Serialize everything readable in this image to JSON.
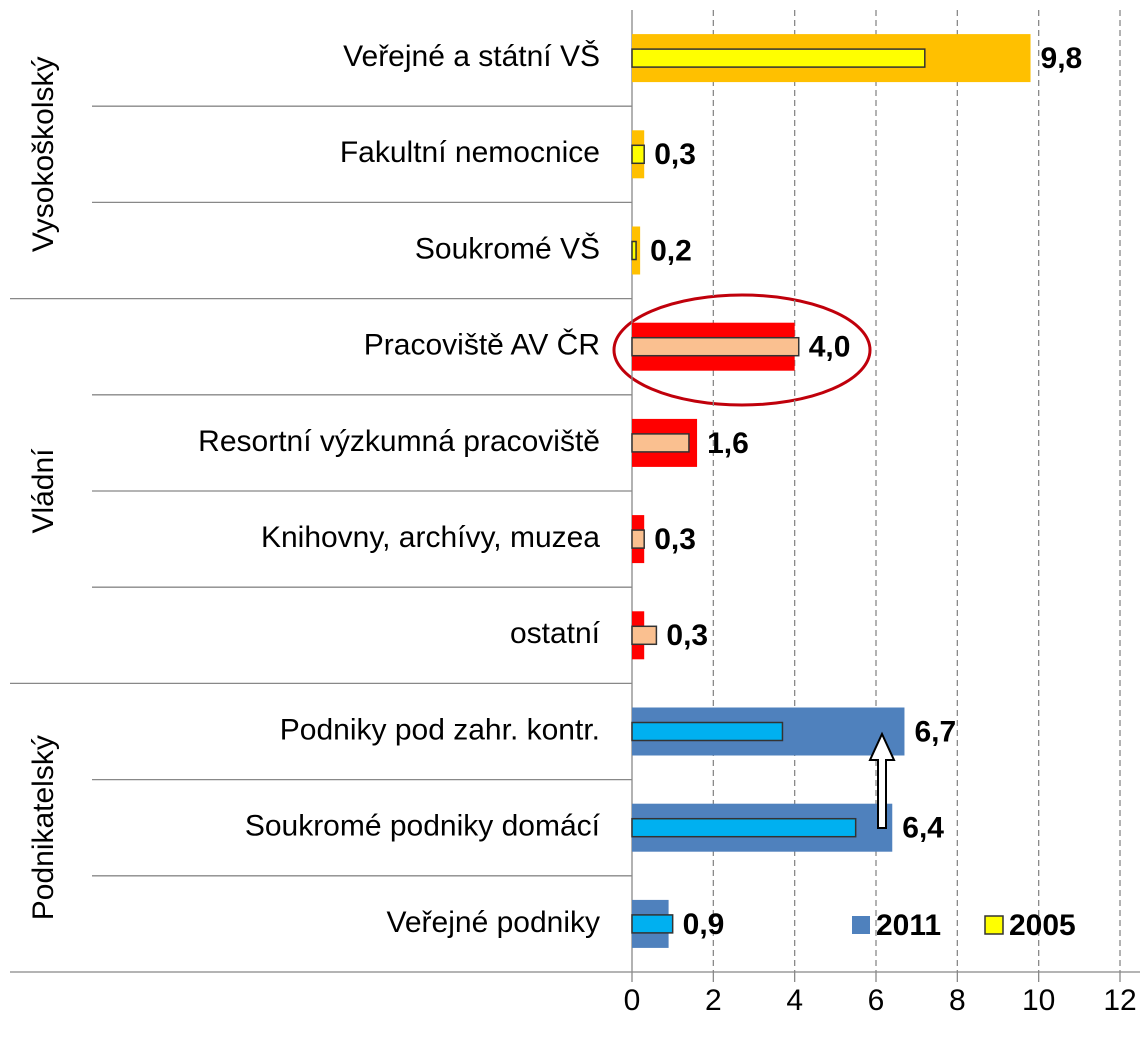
{
  "chart_data": {
    "type": "bar",
    "orientation": "horizontal",
    "groups": [
      {
        "label": "Vysokoškolský",
        "categories": [
          "Veřejné a státní VŠ",
          "Fakultní nemocnice",
          "Soukromé VŠ"
        ]
      },
      {
        "label": "Vládní",
        "categories": [
          "Pracoviště AV ČR",
          "Resortní výzkumná pracoviště",
          "Knihovny, archívy, muzea",
          "ostatní"
        ]
      },
      {
        "label": "Podnikatelský",
        "categories": [
          "Podniky pod zahr. kontr.",
          "Soukromé podniky domácí",
          "Veřejné podniky"
        ]
      }
    ],
    "series": [
      {
        "name": "2011",
        "color": "#4f81bd",
        "colors": [
          "#ffc000",
          "#ffc000",
          "#ffc000",
          "#ff0000",
          "#ff0000",
          "#ff0000",
          "#ff0000",
          "#4f81bd",
          "#4f81bd",
          "#4f81bd"
        ],
        "values": [
          9.8,
          0.3,
          0.2,
          4.0,
          1.6,
          0.3,
          0.3,
          6.7,
          6.4,
          0.9
        ],
        "value_labels": [
          "9,8",
          "0,3",
          "0,2",
          "4,0",
          "1,6",
          "0,3",
          "0,3",
          "6,7",
          "6,4",
          "0,9"
        ]
      },
      {
        "name": "2005",
        "color": "#ffff00",
        "colors": [
          "#ffff00",
          "#ffff00",
          "#ffff00",
          "#fac090",
          "#fac090",
          "#fac090",
          "#fac090",
          "#00b0f0",
          "#00b0f0",
          "#00b0f0"
        ],
        "values": [
          7.2,
          0.3,
          0.1,
          4.1,
          1.4,
          0.3,
          0.6,
          3.7,
          5.5,
          1.0
        ]
      }
    ],
    "xlim": [
      0,
      12
    ],
    "xticks": [
      0,
      2,
      4,
      6,
      8,
      10,
      12
    ],
    "grid": true,
    "legend": "lower right"
  }
}
